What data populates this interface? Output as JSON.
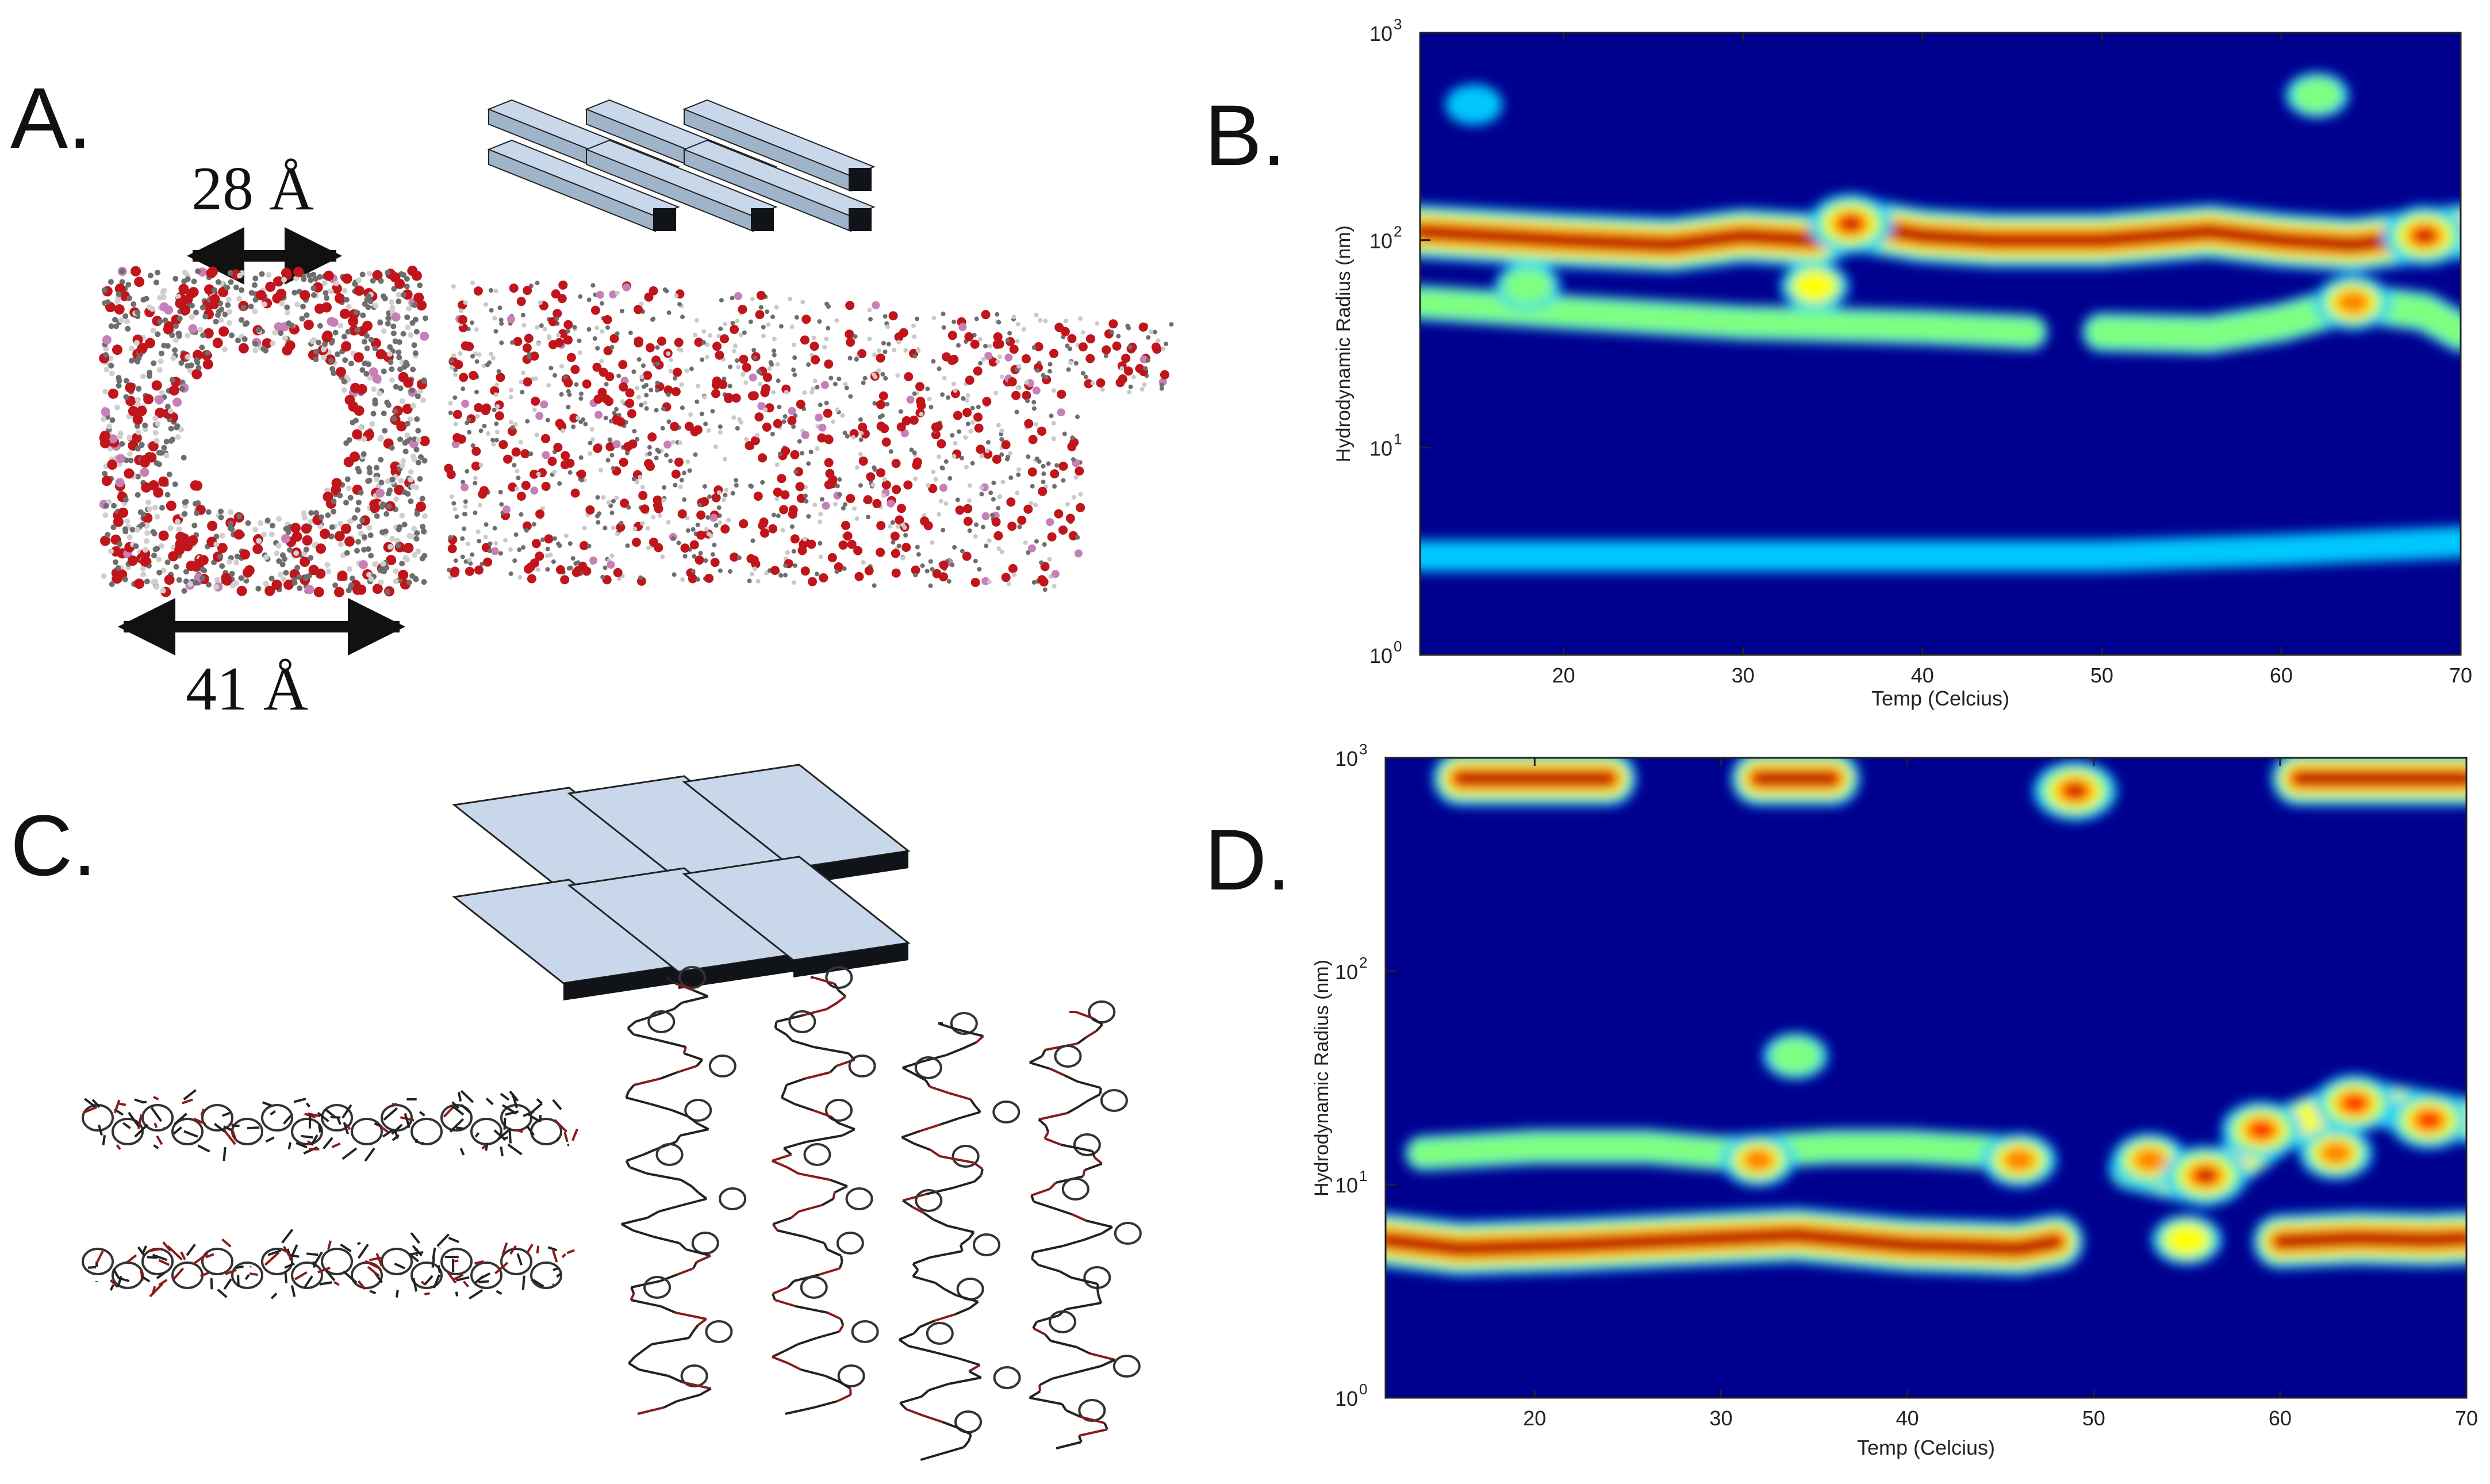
{
  "panels": {
    "A": {
      "letter": "A.",
      "inner_width": "28 Å",
      "outer_width": "41 Å"
    },
    "B": {
      "letter": "B."
    },
    "C": {
      "letter": "C."
    },
    "D": {
      "letter": "D."
    }
  },
  "colors": {
    "heat_background": "#00008f",
    "heat_scale": [
      "#00008f",
      "#0030ff",
      "#00c8ff",
      "#7fff80",
      "#ffff00",
      "#ff8000",
      "#ff0000",
      "#8b0000"
    ],
    "beam_face": "#c8d8ea",
    "beam_dark": "#101418",
    "atom_oxygen": "#c0151b",
    "atom_carbon": "#6e6e6e",
    "atom_phosphorus": "#c77fb8"
  },
  "chart_data": [
    {
      "panel": "B",
      "type": "heatmap",
      "xlabel": "Temp (Celcius)",
      "ylabel": "Hydrodynamic Radius (nm)",
      "xlim": [
        12,
        70
      ],
      "ylim": [
        1,
        1000
      ],
      "y_scale": "log",
      "x_ticks": [
        "20",
        "30",
        "40",
        "50",
        "60",
        "70"
      ],
      "y_ticks": [
        {
          "base": "10",
          "exp": "0"
        },
        {
          "base": "10",
          "exp": "1"
        },
        {
          "base": "10",
          "exp": "2"
        },
        {
          "base": "10",
          "exp": "3"
        }
      ],
      "bands": [
        {
          "x": [
            12,
            20,
            26,
            30,
            34,
            36,
            40,
            44,
            50,
            56,
            60,
            64,
            68,
            70
          ],
          "y": [
            110,
            100,
            95,
            105,
            100,
            120,
            105,
            100,
            100,
            110,
            100,
            95,
            105,
            110
          ],
          "intensity": 1.0
        },
        {
          "x": [
            12,
            20,
            30,
            40,
            46
          ],
          "y": [
            50,
            45,
            40,
            38,
            36
          ],
          "intensity": 0.3
        },
        {
          "x": [
            50,
            56,
            60,
            64,
            68,
            70
          ],
          "y": [
            36,
            35,
            40,
            50,
            45,
            36
          ],
          "intensity": 0.45
        },
        {
          "x": [
            12,
            20,
            30,
            40,
            50,
            60,
            70
          ],
          "y": [
            3,
            3,
            3,
            3,
            3,
            3.2,
            3.5
          ],
          "intensity": 0.15
        }
      ],
      "spots": [
        {
          "x": 62,
          "y": 500,
          "intensity": 0.4
        },
        {
          "x": 15,
          "y": 450,
          "intensity": 0.2
        },
        {
          "x": 34,
          "y": 60,
          "intensity": 0.55
        },
        {
          "x": 18,
          "y": 60,
          "intensity": 0.45
        },
        {
          "x": 64,
          "y": 50,
          "intensity": 0.8
        },
        {
          "x": 36,
          "y": 120,
          "intensity": 1.0
        },
        {
          "x": 68,
          "y": 105,
          "intensity": 1.0
        }
      ]
    },
    {
      "panel": "D",
      "type": "heatmap",
      "xlabel": "Temp (Celcius)",
      "ylabel": "Hydrodynamic Radius (nm)",
      "xlim": [
        12,
        70
      ],
      "ylim": [
        1,
        1000
      ],
      "y_scale": "log",
      "x_ticks": [
        "20",
        "30",
        "40",
        "50",
        "60",
        "70"
      ],
      "y_ticks": [
        {
          "base": "10",
          "exp": "0"
        },
        {
          "base": "10",
          "exp": "1"
        },
        {
          "base": "10",
          "exp": "2"
        },
        {
          "base": "10",
          "exp": "3"
        }
      ],
      "bands": [
        {
          "x": [
            12,
            16,
            22,
            28,
            34,
            40,
            46,
            48
          ],
          "y": [
            5.5,
            5,
            5.2,
            5.5,
            5.8,
            5.2,
            5,
            5.4
          ],
          "intensity": 1.0
        },
        {
          "x": [
            60,
            64,
            68,
            70
          ],
          "y": [
            5.4,
            5.6,
            5.5,
            5.6
          ],
          "intensity": 1.0
        },
        {
          "x": [
            14,
            20,
            26,
            30,
            36,
            40,
            46
          ],
          "y": [
            14,
            15,
            15,
            14,
            15,
            15,
            14
          ],
          "intensity": 0.3
        },
        {
          "x": [
            52,
            56,
            60,
            64,
            70
          ],
          "y": [
            12,
            10,
            18,
            25,
            20
          ],
          "intensity": 0.65
        },
        {
          "x": [
            16,
            20,
            24
          ],
          "y": [
            800,
            800,
            800
          ],
          "intensity": 1.0
        },
        {
          "x": [
            32,
            34,
            36
          ],
          "y": [
            800,
            800,
            800
          ],
          "intensity": 1.0
        },
        {
          "x": [
            61,
            65,
            70
          ],
          "y": [
            800,
            800,
            800
          ],
          "intensity": 1.0
        }
      ],
      "spots": [
        {
          "x": 49,
          "y": 700,
          "intensity": 1.0
        },
        {
          "x": 34,
          "y": 40,
          "intensity": 0.45
        },
        {
          "x": 32,
          "y": 13,
          "intensity": 0.7
        },
        {
          "x": 46,
          "y": 13,
          "intensity": 0.75
        },
        {
          "x": 53,
          "y": 13,
          "intensity": 0.75
        },
        {
          "x": 55,
          "y": 5.5,
          "intensity": 0.6
        },
        {
          "x": 56,
          "y": 11,
          "intensity": 1.0
        },
        {
          "x": 59,
          "y": 18,
          "intensity": 0.9
        },
        {
          "x": 64,
          "y": 24,
          "intensity": 0.9
        },
        {
          "x": 68,
          "y": 20,
          "intensity": 0.9
        },
        {
          "x": 63,
          "y": 14,
          "intensity": 0.7
        }
      ]
    }
  ]
}
